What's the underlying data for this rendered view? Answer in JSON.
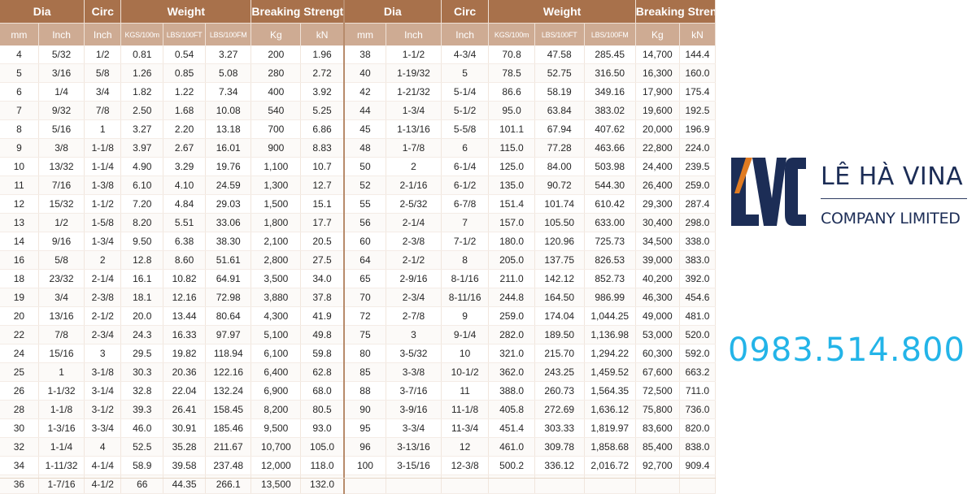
{
  "table": {
    "groups": [
      "Dia",
      "Circ",
      "Weight",
      "Breaking Strength"
    ],
    "units": [
      "mm",
      "Inch",
      "Inch",
      "KGS/100m",
      "LBS/100FT",
      "LBS/100FM",
      "Kg",
      "kN"
    ],
    "left_rows": [
      [
        "4",
        "5/32",
        "1/2",
        "0.81",
        "0.54",
        "3.27",
        "200",
        "1.96"
      ],
      [
        "5",
        "3/16",
        "5/8",
        "1.26",
        "0.85",
        "5.08",
        "280",
        "2.72"
      ],
      [
        "6",
        "1/4",
        "3/4",
        "1.82",
        "1.22",
        "7.34",
        "400",
        "3.92"
      ],
      [
        "7",
        "9/32",
        "7/8",
        "2.50",
        "1.68",
        "10.08",
        "540",
        "5.25"
      ],
      [
        "8",
        "5/16",
        "1",
        "3.27",
        "2.20",
        "13.18",
        "700",
        "6.86"
      ],
      [
        "9",
        "3/8",
        "1-1/8",
        "3.97",
        "2.67",
        "16.01",
        "900",
        "8.83"
      ],
      [
        "10",
        "13/32",
        "1-1/4",
        "4.90",
        "3.29",
        "19.76",
        "1,100",
        "10.7"
      ],
      [
        "11",
        "7/16",
        "1-3/8",
        "6.10",
        "4.10",
        "24.59",
        "1,300",
        "12.7"
      ],
      [
        "12",
        "15/32",
        "1-1/2",
        "7.20",
        "4.84",
        "29.03",
        "1,500",
        "15.1"
      ],
      [
        "13",
        "1/2",
        "1-5/8",
        "8.20",
        "5.51",
        "33.06",
        "1,800",
        "17.7"
      ],
      [
        "14",
        "9/16",
        "1-3/4",
        "9.50",
        "6.38",
        "38.30",
        "2,100",
        "20.5"
      ],
      [
        "16",
        "5/8",
        "2",
        "12.8",
        "8.60",
        "51.61",
        "2,800",
        "27.5"
      ],
      [
        "18",
        "23/32",
        "2-1/4",
        "16.1",
        "10.82",
        "64.91",
        "3,500",
        "34.0"
      ],
      [
        "19",
        "3/4",
        "2-3/8",
        "18.1",
        "12.16",
        "72.98",
        "3,880",
        "37.8"
      ],
      [
        "20",
        "13/16",
        "2-1/2",
        "20.0",
        "13.44",
        "80.64",
        "4,300",
        "41.9"
      ],
      [
        "22",
        "7/8",
        "2-3/4",
        "24.3",
        "16.33",
        "97.97",
        "5,100",
        "49.8"
      ],
      [
        "24",
        "15/16",
        "3",
        "29.5",
        "19.82",
        "118.94",
        "6,100",
        "59.8"
      ],
      [
        "25",
        "1",
        "3-1/8",
        "30.3",
        "20.36",
        "122.16",
        "6,400",
        "62.8"
      ],
      [
        "26",
        "1-1/32",
        "3-1/4",
        "32.8",
        "22.04",
        "132.24",
        "6,900",
        "68.0"
      ],
      [
        "28",
        "1-1/8",
        "3-1/2",
        "39.3",
        "26.41",
        "158.45",
        "8,200",
        "80.5"
      ],
      [
        "30",
        "1-3/16",
        "3-3/4",
        "46.0",
        "30.91",
        "185.46",
        "9,500",
        "93.0"
      ],
      [
        "32",
        "1-1/4",
        "4",
        "52.5",
        "35.28",
        "211.67",
        "10,700",
        "105.0"
      ],
      [
        "34",
        "1-11/32",
        "4-1/4",
        "58.9",
        "39.58",
        "237.48",
        "12,000",
        "118.0"
      ],
      [
        "36",
        "1-7/16",
        "4-1/2",
        "66",
        "44.35",
        "266.1",
        "13,500",
        "132.0"
      ]
    ],
    "right_rows": [
      [
        "38",
        "1-1/2",
        "4-3/4",
        "70.8",
        "47.58",
        "285.45",
        "14,700",
        "144.4"
      ],
      [
        "40",
        "1-19/32",
        "5",
        "78.5",
        "52.75",
        "316.50",
        "16,300",
        "160.0"
      ],
      [
        "42",
        "1-21/32",
        "5-1/4",
        "86.6",
        "58.19",
        "349.16",
        "17,900",
        "175.4"
      ],
      [
        "44",
        "1-3/4",
        "5-1/2",
        "95.0",
        "63.84",
        "383.02",
        "19,600",
        "192.5"
      ],
      [
        "45",
        "1-13/16",
        "5-5/8",
        "101.1",
        "67.94",
        "407.62",
        "20,000",
        "196.9"
      ],
      [
        "48",
        "1-7/8",
        "6",
        "115.0",
        "77.28",
        "463.66",
        "22,800",
        "224.0"
      ],
      [
        "50",
        "2",
        "6-1/4",
        "125.0",
        "84.00",
        "503.98",
        "24,400",
        "239.5"
      ],
      [
        "52",
        "2-1/16",
        "6-1/2",
        "135.0",
        "90.72",
        "544.30",
        "26,400",
        "259.0"
      ],
      [
        "55",
        "2-5/32",
        "6-7/8",
        "151.4",
        "101.74",
        "610.42",
        "29,300",
        "287.4"
      ],
      [
        "56",
        "2-1/4",
        "7",
        "157.0",
        "105.50",
        "633.00",
        "30,400",
        "298.0"
      ],
      [
        "60",
        "2-3/8",
        "7-1/2",
        "180.0",
        "120.96",
        "725.73",
        "34,500",
        "338.0"
      ],
      [
        "64",
        "2-1/2",
        "8",
        "205.0",
        "137.75",
        "826.53",
        "39,000",
        "383.0"
      ],
      [
        "65",
        "2-9/16",
        "8-1/16",
        "211.0",
        "142.12",
        "852.73",
        "40,200",
        "392.0"
      ],
      [
        "70",
        "2-3/4",
        "8-11/16",
        "244.8",
        "164.50",
        "986.99",
        "46,300",
        "454.6"
      ],
      [
        "72",
        "2-7/8",
        "9",
        "259.0",
        "174.04",
        "1,044.25",
        "49,000",
        "481.0"
      ],
      [
        "75",
        "3",
        "9-1/4",
        "282.0",
        "189.50",
        "1,136.98",
        "53,000",
        "520.0"
      ],
      [
        "80",
        "3-5/32",
        "10",
        "321.0",
        "215.70",
        "1,294.22",
        "60,300",
        "592.0"
      ],
      [
        "85",
        "3-3/8",
        "10-1/2",
        "362.0",
        "243.25",
        "1,459.52",
        "67,600",
        "663.2"
      ],
      [
        "88",
        "3-7/16",
        "11",
        "388.0",
        "260.73",
        "1,564.35",
        "72,500",
        "711.0"
      ],
      [
        "90",
        "3-9/16",
        "11-1/8",
        "405.8",
        "272.69",
        "1,636.12",
        "75,800",
        "736.0"
      ],
      [
        "95",
        "3-3/4",
        "11-3/4",
        "451.4",
        "303.33",
        "1,819.97",
        "83,600",
        "820.0"
      ],
      [
        "96",
        "3-13/16",
        "12",
        "461.0",
        "309.78",
        "1,858.68",
        "85,400",
        "838.0"
      ],
      [
        "100",
        "3-15/16",
        "12-3/8",
        "500.2",
        "336.12",
        "2,016.72",
        "92,700",
        "909.4"
      ]
    ]
  },
  "logo": {
    "mark_letters": "LVC",
    "name": "LÊ HÀ VINA",
    "tagline": "COMPANY LIMITED",
    "colors": {
      "navy": "#1c2d56",
      "orange": "#e07b22"
    }
  },
  "phone": "0983.514.800",
  "colors": {
    "header": "#a8714b",
    "subheader": "#ceab93",
    "phone": "#23b4e8"
  }
}
